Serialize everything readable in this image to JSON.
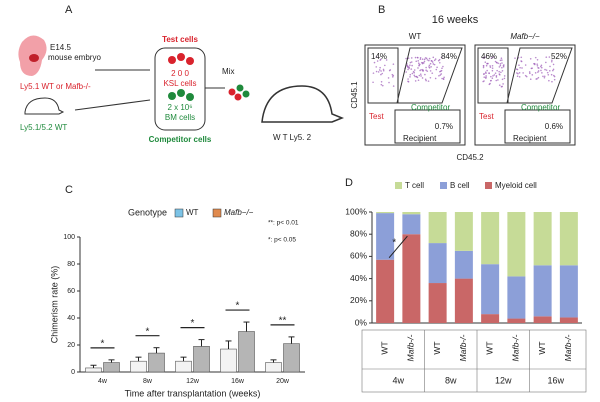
{
  "panel_a": {
    "label": "A",
    "embryo_stage": "E14.5",
    "embryo": "mouse embryo",
    "test_donor": "Ly5.1 WT or Mafb-/-",
    "competitor_donor": "Ly5.1/5.2 WT",
    "test_title": "Test cells",
    "test_count": "2 0 0",
    "test_cells": "KSL cells",
    "competitor_count": "2 x 10⁶",
    "competitor_cells": "BM cells",
    "competitor_title": "Competitor cells",
    "mix": "Mix",
    "recipient": "W T Ly5. 2"
  },
  "panel_b": {
    "label": "B",
    "title": "16 weeks",
    "ylabel": "CD45.1",
    "xlabel": "CD45.2",
    "plots": [
      {
        "title": "WT",
        "top_left": "14%",
        "top_right": "84%",
        "test": "Test",
        "competitor": "Competitor",
        "bottom": "0.7%",
        "recipient": "Recipient"
      },
      {
        "title": "Mafb−/−",
        "top_left": "46%",
        "top_right": "52%",
        "test": "Test",
        "competitor": "Competitor",
        "bottom": "0.6%",
        "recipient": "Recipient"
      }
    ]
  },
  "chart_data": [
    {
      "type": "bar",
      "panel": "C",
      "legend_title": "Genotype",
      "categories": [
        "4w",
        "8w",
        "12w",
        "16w",
        "20w"
      ],
      "series": [
        {
          "name": "WT",
          "color": "#7cc3e6",
          "bar_fill": "#f3f3f3",
          "values": [
            3,
            8,
            8,
            17,
            7
          ],
          "errors": [
            2,
            3,
            3,
            6,
            2
          ]
        },
        {
          "name": "Mafb−/−",
          "color": "#e08a4e",
          "bar_fill": "#b5b5b5",
          "values": [
            7,
            14,
            19,
            30,
            21
          ],
          "errors": [
            2,
            4,
            5,
            7,
            5
          ]
        }
      ],
      "significance": [
        "*",
        "*",
        "*",
        "*",
        "**"
      ],
      "annotations": [
        "**: p< 0.01",
        "*: p< 0.05"
      ],
      "ylabel": "Chimerism rate (%)",
      "xlabel": "Time after transplantation (weeks)",
      "ylim": [
        0,
        100
      ],
      "yticks": [
        0,
        20,
        40,
        60,
        80,
        100
      ]
    },
    {
      "type": "stacked_bar",
      "panel": "D",
      "categories": [
        "WT",
        "Mafb-/-",
        "WT",
        "Mafb-/-",
        "WT",
        "Mafb-/-",
        "WT",
        "Mafb-/-"
      ],
      "groups": [
        "4w",
        "8w",
        "12w",
        "16w"
      ],
      "series": [
        {
          "name": "Myeloid cell",
          "color": "#c96767",
          "values": [
            57,
            80,
            36,
            40,
            8,
            4,
            6,
            5
          ]
        },
        {
          "name": "B cell",
          "color": "#8c9fd8",
          "values": [
            42,
            18,
            36,
            25,
            45,
            38,
            46,
            47
          ]
        },
        {
          "name": "T cell",
          "color": "#c6db97",
          "values": [
            1,
            2,
            28,
            35,
            47,
            58,
            48,
            48
          ]
        }
      ],
      "annotation": "*",
      "ylim": [
        0,
        100
      ],
      "yticks": [
        {
          "value": 0,
          "label": "0%"
        },
        {
          "value": 20,
          "label": "20%"
        },
        {
          "value": 40,
          "label": "40%"
        },
        {
          "value": 60,
          "label": "60%"
        },
        {
          "value": 80,
          "label": "80%"
        },
        {
          "value": 100,
          "label": "100%"
        }
      ]
    }
  ]
}
